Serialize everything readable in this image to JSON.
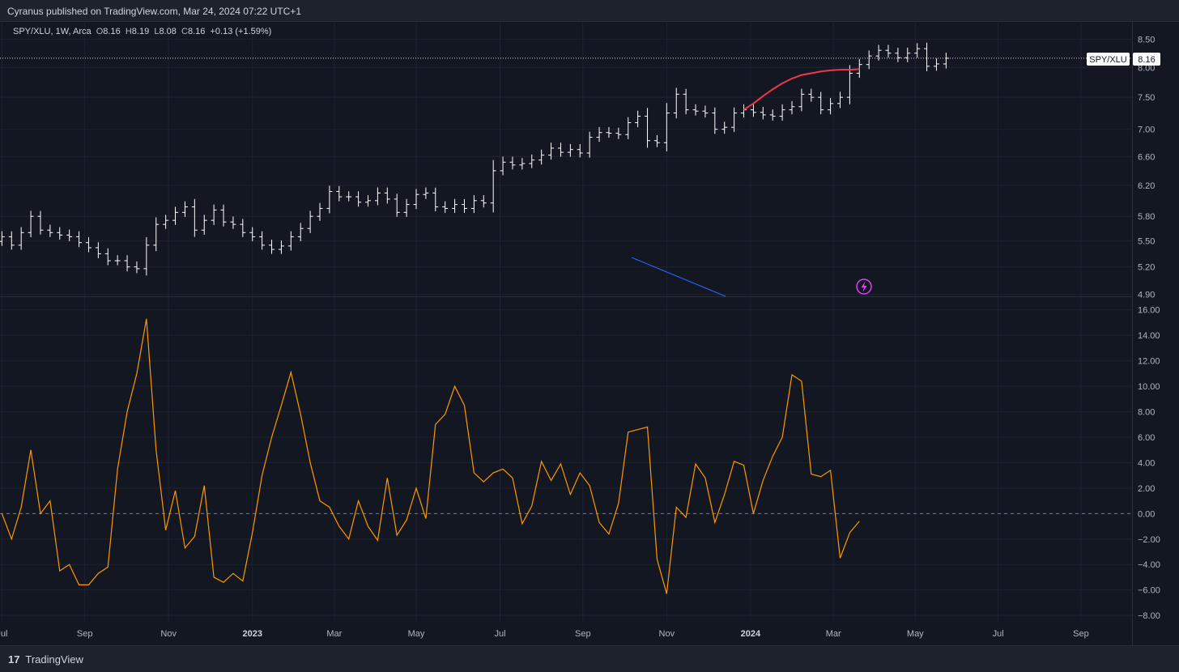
{
  "header": {
    "published_line": "Cyranus published on TradingView.com, Mar 24, 2024 07:22 UTC+1"
  },
  "legend": {
    "symbol": "SPY/XLU, 1W, Arca",
    "open_label": "O",
    "open": "8.16",
    "high_label": "H",
    "high": "8.19",
    "low_label": "L",
    "low": "8.08",
    "close_label": "C",
    "close": "8.16",
    "change": "+0.13 (+1.59%)"
  },
  "price_tag": {
    "symbol": "SPY/XLU",
    "value": "8.16",
    "value_num": 8.16
  },
  "footer": {
    "brand": "TradingView",
    "logo_glyph": "17"
  },
  "colors": {
    "background": "#131722",
    "bar": "#ffffff",
    "sma": "#f23645",
    "oscillator": "#ff9800",
    "trendline": "#2962ff",
    "lightning": "#e040fb",
    "grid": "#1f2330"
  },
  "icons": {
    "alert": "lightning-icon"
  },
  "chart_data": [
    {
      "type": "ohlc-bar",
      "series_label": "SPY/XLU, 1W, Arca",
      "scale": "log",
      "y_ticks": [
        4.9,
        5.2,
        5.5,
        5.8,
        6.2,
        6.6,
        7.0,
        7.5,
        8.0,
        8.5
      ],
      "ylim": [
        4.88,
        8.75
      ],
      "x_tick_labels": [
        "Jul",
        "Sep",
        "Nov",
        "2023",
        "Mar",
        "May",
        "Jul",
        "Sep",
        "Nov",
        "2024",
        "Mar",
        "May",
        "Jul",
        "Sep"
      ],
      "bold_ticks": [
        "2023",
        "2024"
      ],
      "x_tick_weeks": [
        0,
        8.6,
        17.3,
        26,
        34.5,
        43,
        51.7,
        60.3,
        69,
        77.7,
        86.3,
        94.8,
        103.4,
        112
      ],
      "xlim_weeks": [
        -0.2,
        117.3
      ],
      "closes": [
        5.55,
        5.45,
        5.6,
        5.8,
        5.63,
        5.6,
        5.57,
        5.55,
        5.48,
        5.42,
        5.35,
        5.27,
        5.27,
        5.2,
        5.18,
        5.45,
        5.7,
        5.75,
        5.85,
        5.92,
        5.63,
        5.75,
        5.88,
        5.73,
        5.7,
        5.6,
        5.55,
        5.45,
        5.4,
        5.44,
        5.55,
        5.65,
        5.8,
        5.9,
        6.12,
        6.05,
        6.05,
        5.98,
        6.0,
        6.1,
        6.02,
        5.85,
        5.95,
        6.08,
        6.1,
        5.92,
        5.9,
        5.95,
        5.9,
        6.0,
        5.97,
        6.4,
        6.52,
        6.48,
        6.5,
        6.55,
        6.62,
        6.72,
        6.66,
        6.7,
        6.65,
        6.88,
        6.95,
        6.94,
        6.92,
        7.1,
        7.2,
        6.83,
        6.8,
        7.25,
        7.55,
        7.3,
        7.28,
        7.25,
        7.0,
        7.03,
        7.25,
        7.3,
        7.26,
        7.22,
        7.2,
        7.3,
        7.35,
        7.55,
        7.5,
        7.3,
        7.4,
        7.5,
        7.9,
        8.05,
        8.2,
        8.3,
        8.25,
        8.17,
        8.25,
        8.33,
        8.02,
        8.06,
        8.16
      ],
      "sma_start_week": 77,
      "sma_values": [
        7.3,
        7.4,
        7.52,
        7.63,
        7.73,
        7.81,
        7.87,
        7.9,
        7.93,
        7.95,
        7.96,
        7.96,
        7.97
      ]
    },
    {
      "type": "line",
      "series_label": "",
      "y_ticks": [
        -8.0,
        -6.0,
        -4.0,
        -2.0,
        0.0,
        2.0,
        4.0,
        6.0,
        8.0,
        10.0,
        12.0,
        14.0,
        16.0
      ],
      "ylim": [
        -8.5,
        17.0
      ],
      "zero_line": 0,
      "values": [
        0.0,
        -2.0,
        0.5,
        5.0,
        0.0,
        1.0,
        -4.5,
        -4.0,
        -5.6,
        -5.6,
        -4.7,
        -4.2,
        3.5,
        8.0,
        11.0,
        15.3,
        5.0,
        -1.3,
        1.8,
        -2.7,
        -1.8,
        2.2,
        -5.0,
        -5.4,
        -4.7,
        -5.3,
        -1.5,
        3.0,
        6.0,
        8.5,
        11.1,
        7.8,
        4.0,
        1.0,
        0.5,
        -1.0,
        -2.0,
        1.0,
        -1.0,
        -2.1,
        2.8,
        -1.7,
        -0.5,
        2.0,
        -0.4,
        7.0,
        7.8,
        10.0,
        8.5,
        3.2,
        2.5,
        3.2,
        3.5,
        2.8,
        -0.8,
        0.6,
        4.1,
        2.6,
        3.9,
        1.5,
        3.2,
        2.2,
        -0.7,
        -1.6,
        0.8,
        6.4,
        6.6,
        6.8,
        -3.6,
        -6.3,
        0.5,
        -0.3,
        3.9,
        2.8,
        -0.7,
        1.5,
        4.1,
        3.8,
        0.0,
        2.6,
        4.5,
        6.0,
        10.9,
        10.4,
        3.1,
        2.9,
        3.4,
        -3.5,
        -1.5,
        -0.6
      ]
    }
  ]
}
